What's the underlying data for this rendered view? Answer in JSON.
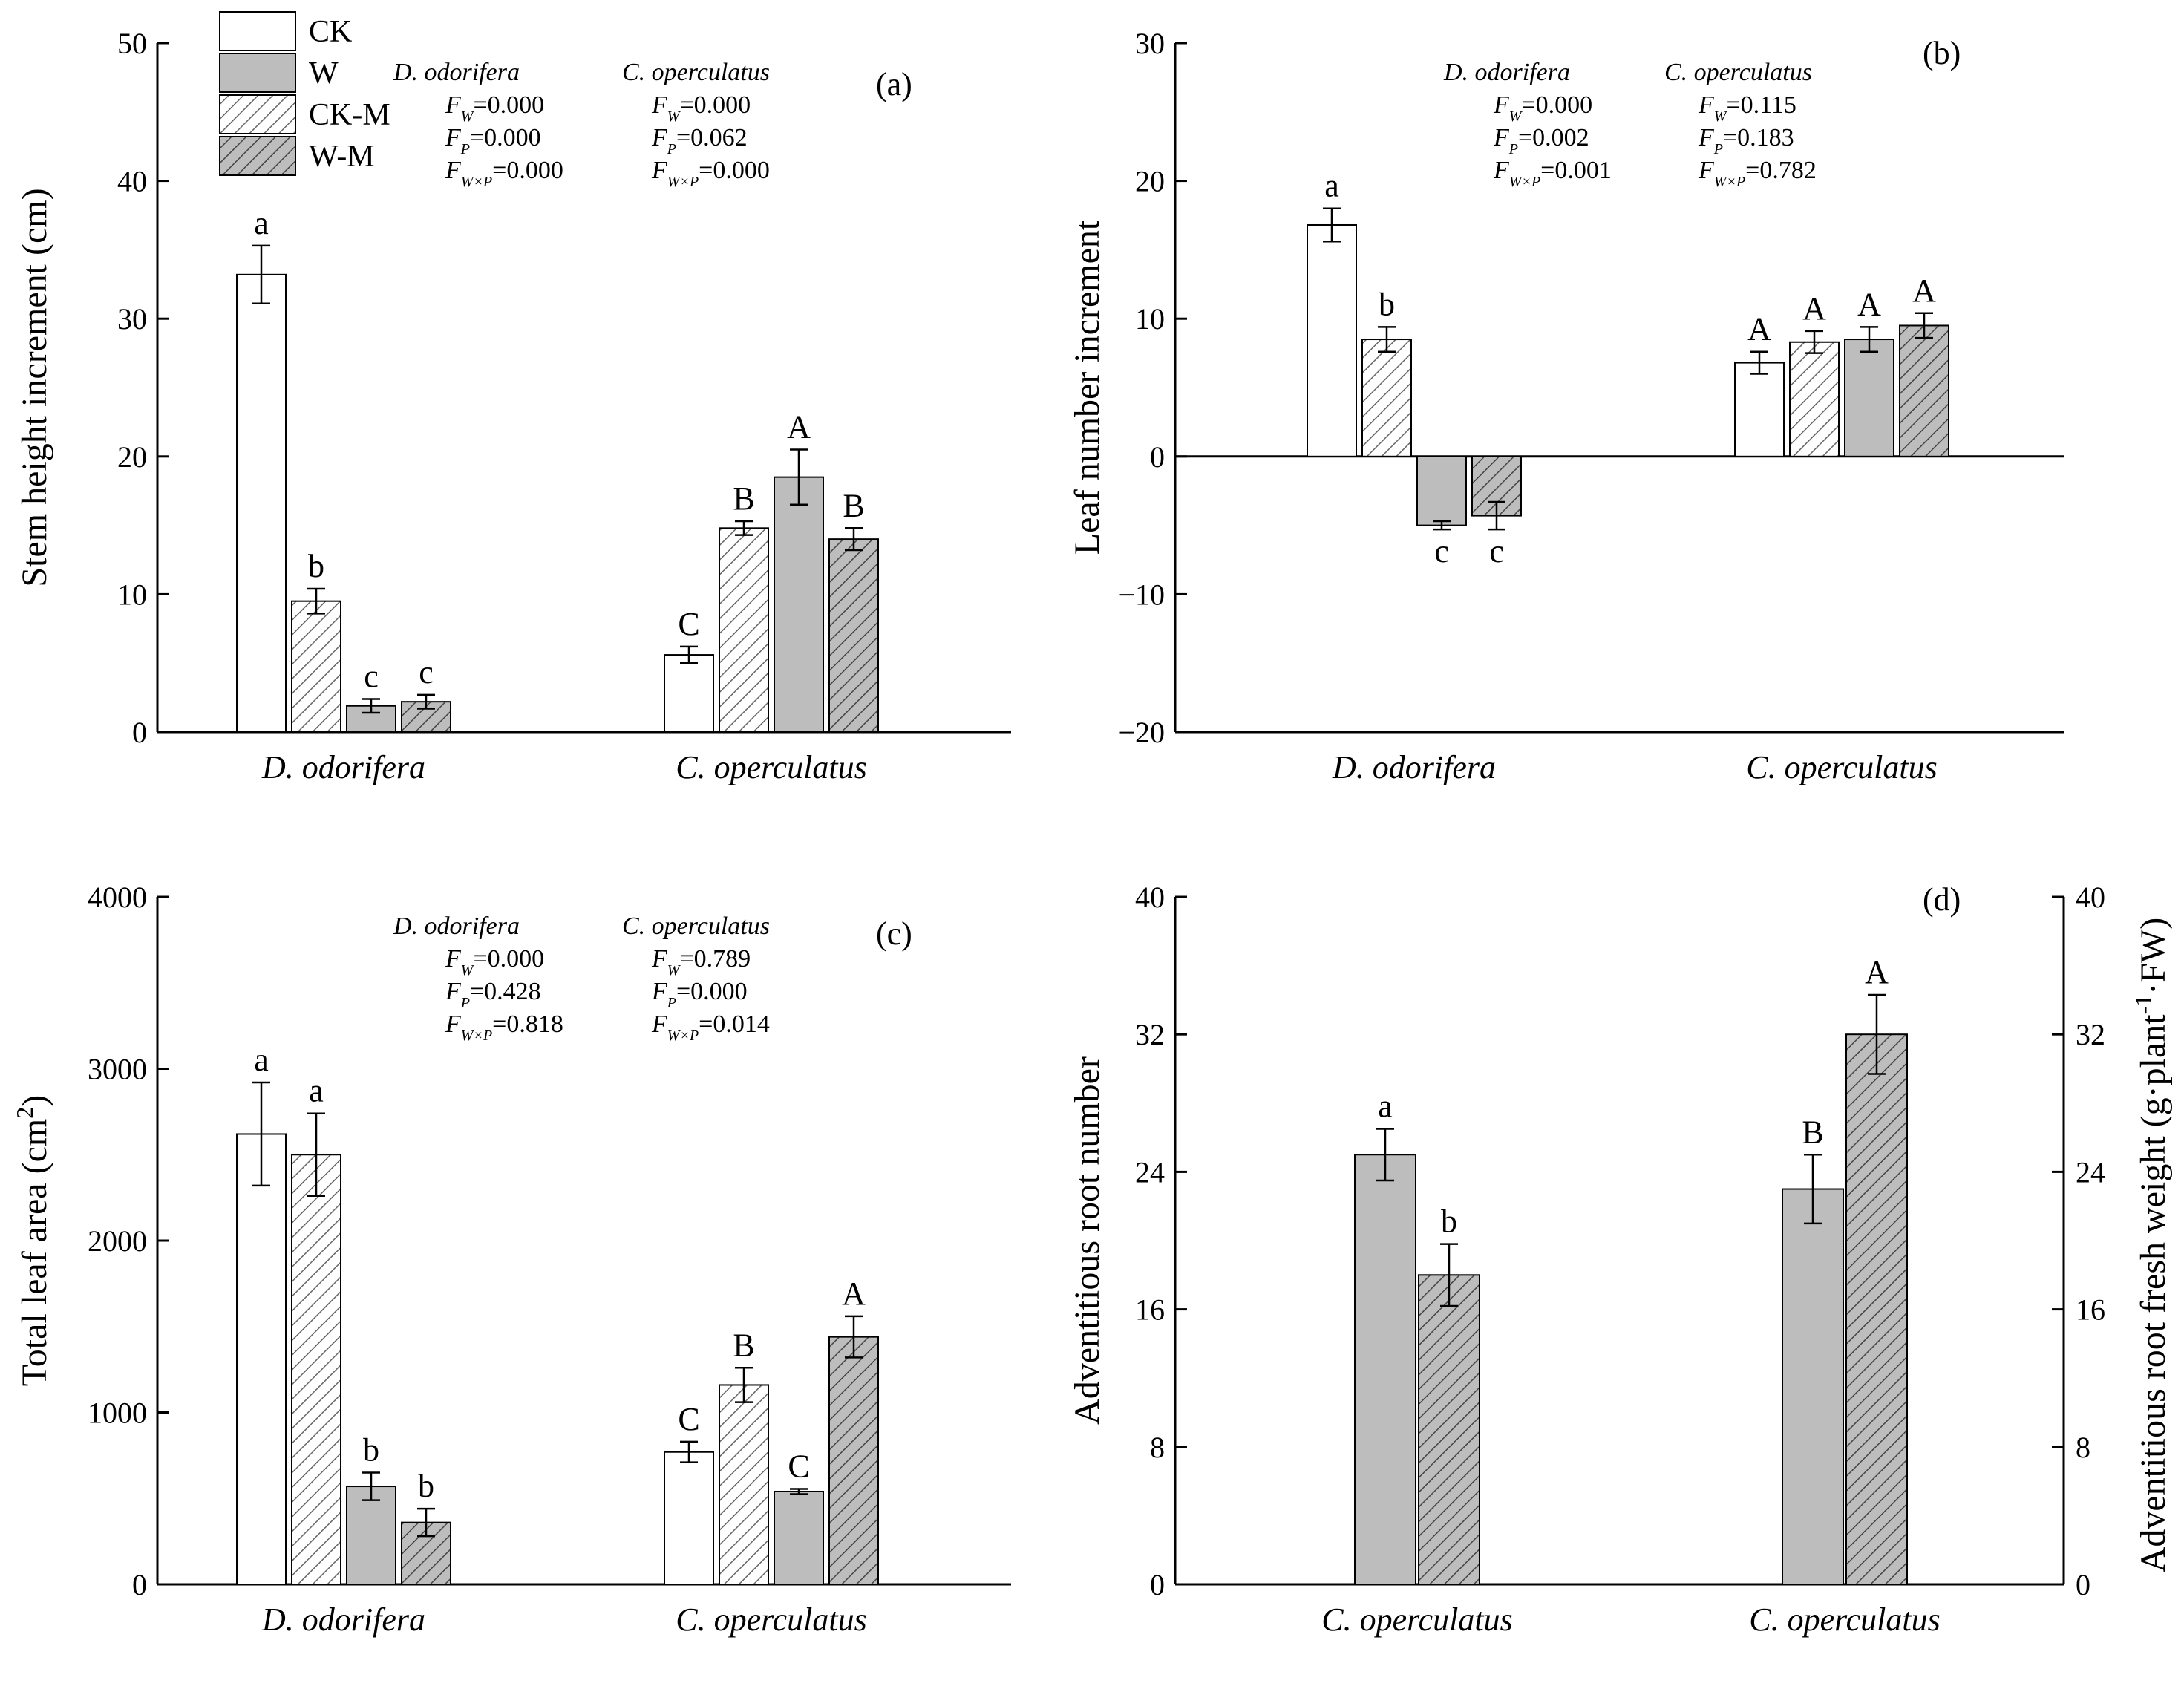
{
  "legend": [
    {
      "label": "CK",
      "style": "white"
    },
    {
      "label": "W",
      "style": "gray"
    },
    {
      "label": "CK-M",
      "style": "hatchWhite"
    },
    {
      "label": "W-M",
      "style": "hatchGray"
    }
  ],
  "colors": {
    "gray": "#bdbdbd",
    "hatch_line": "#666666",
    "axis": "#000000",
    "white": "#ffffff"
  },
  "chart_data": [
    {
      "id": "a",
      "panel_label": "(a)",
      "type": "bar",
      "ylabel": "Stem height increment (cm)",
      "ylim": [
        0,
        50
      ],
      "yticks": [
        0,
        10,
        20,
        30,
        40,
        50
      ],
      "categories": [
        "D. odorifera",
        "C. operculatus"
      ],
      "species_pairs": [
        [
          "CK",
          "CK-M",
          "W",
          "W-M"
        ],
        [
          "CK",
          "CK-M",
          "W",
          "W-M"
        ]
      ],
      "series_styles": [
        [
          "white",
          "hatchWhite",
          "gray",
          "hatchGray"
        ],
        [
          "white",
          "hatchWhite",
          "gray",
          "hatchGray"
        ]
      ],
      "values": [
        [
          33.2,
          9.5,
          1.9,
          2.2
        ],
        [
          5.6,
          14.8,
          18.5,
          14.0
        ]
      ],
      "errors": [
        [
          2.1,
          0.9,
          0.5,
          0.5
        ],
        [
          0.6,
          0.5,
          2.0,
          0.8
        ]
      ],
      "letters": [
        [
          "a",
          "b",
          "c",
          "c"
        ],
        [
          "C",
          "B",
          "A",
          "B"
        ]
      ],
      "stats": [
        {
          "species": "D. odorifera",
          "lines": [
            {
              "sub": "W",
              "value": "=0.000"
            },
            {
              "sub": "P",
              "value": "=0.000"
            },
            {
              "sub": "W×P",
              "value": "=0.000"
            }
          ]
        },
        {
          "species": "C. operculatus",
          "lines": [
            {
              "sub": "W",
              "value": "=0.000"
            },
            {
              "sub": "P",
              "value": "=0.062"
            },
            {
              "sub": "W×P",
              "value": "=0.000"
            }
          ]
        }
      ]
    },
    {
      "id": "b",
      "panel_label": "(b)",
      "type": "bar",
      "ylabel": "Leaf number increment",
      "ylim": [
        -20,
        30
      ],
      "yticks": [
        -20,
        -10,
        0,
        10,
        20,
        30
      ],
      "categories": [
        "D. odorifera",
        "C. operculatus"
      ],
      "species_pairs": [
        [
          "CK",
          "CK-M",
          "W",
          "W-M"
        ],
        [
          "CK",
          "CK-M",
          "W",
          "W-M"
        ]
      ],
      "series_styles": [
        [
          "white",
          "hatchWhite",
          "gray",
          "hatchGray"
        ],
        [
          "white",
          "hatchWhite",
          "gray",
          "hatchGray"
        ]
      ],
      "values": [
        [
          16.8,
          8.5,
          -5.0,
          -4.3
        ],
        [
          6.8,
          8.3,
          8.5,
          9.5
        ]
      ],
      "errors": [
        [
          1.2,
          0.9,
          0.3,
          1.0
        ],
        [
          0.8,
          0.8,
          0.9,
          0.9
        ]
      ],
      "letters": [
        [
          "a",
          "b",
          "c",
          "c"
        ],
        [
          "A",
          "A",
          "A",
          "A"
        ]
      ],
      "stats": [
        {
          "species": "D. odorifera",
          "lines": [
            {
              "sub": "W",
              "value": "=0.000"
            },
            {
              "sub": "P",
              "value": "=0.002"
            },
            {
              "sub": "W×P",
              "value": "=0.001"
            }
          ]
        },
        {
          "species": "C. operculatus",
          "lines": [
            {
              "sub": "W",
              "value": "=0.115"
            },
            {
              "sub": "P",
              "value": "=0.183"
            },
            {
              "sub": "W×P",
              "value": "=0.782"
            }
          ]
        }
      ]
    },
    {
      "id": "c",
      "panel_label": "(c)",
      "type": "bar",
      "ylabel": "Total leaf area (cm",
      "ylabel_sup": "2",
      "ylabel_end": ")",
      "ylim": [
        0,
        4000
      ],
      "yticks": [
        0,
        1000,
        2000,
        3000,
        4000
      ],
      "categories": [
        "D. odorifera",
        "C. operculatus"
      ],
      "species_pairs": [
        [
          "CK",
          "CK-M",
          "W",
          "W-M"
        ],
        [
          "CK",
          "CK-M",
          "W",
          "W-M"
        ]
      ],
      "series_styles": [
        [
          "white",
          "hatchWhite",
          "gray",
          "hatchGray"
        ],
        [
          "white",
          "hatchWhite",
          "gray",
          "hatchGray"
        ]
      ],
      "values": [
        [
          2620,
          2500,
          570,
          360
        ],
        [
          770,
          1160,
          540,
          1440
        ]
      ],
      "errors": [
        [
          300,
          240,
          80,
          80
        ],
        [
          60,
          100,
          15,
          120
        ]
      ],
      "letters": [
        [
          "a",
          "a",
          "b",
          "b"
        ],
        [
          "C",
          "B",
          "C",
          "A"
        ]
      ],
      "stats": [
        {
          "species": "D. odorifera",
          "lines": [
            {
              "sub": "W",
              "value": "=0.000"
            },
            {
              "sub": "P",
              "value": "=0.428"
            },
            {
              "sub": "W×P",
              "value": "=0.818"
            }
          ]
        },
        {
          "species": "C. operculatus",
          "lines": [
            {
              "sub": "W",
              "value": "=0.789"
            },
            {
              "sub": "P",
              "value": "=0.000"
            },
            {
              "sub": "W×P",
              "value": "=0.014"
            }
          ]
        }
      ]
    },
    {
      "id": "d",
      "panel_label": "(d)",
      "type": "bar",
      "ylabel": "Adventitious root number",
      "ylabel_right": "Adventitious root fresh weight (g·plant",
      "ylabel_right_sup": "-1",
      "ylabel_right_end": "·FW)",
      "ylim": [
        0,
        40
      ],
      "yticks": [
        0,
        8,
        16,
        24,
        32,
        40
      ],
      "categories": [
        "C. operculatus",
        "C. operculatus"
      ],
      "species_pairs": [
        [
          "W",
          "W-M"
        ],
        [
          "W",
          "W-M"
        ]
      ],
      "series_styles": [
        [
          "gray",
          "hatchGray"
        ],
        [
          "gray",
          "hatchGray"
        ]
      ],
      "values": [
        [
          25.0,
          18.0
        ],
        [
          23.0,
          32.0
        ]
      ],
      "errors": [
        [
          1.5,
          1.8
        ],
        [
          2.0,
          2.3
        ]
      ],
      "letters": [
        [
          "a",
          "b"
        ],
        [
          "B",
          "A"
        ]
      ],
      "stats": []
    }
  ]
}
